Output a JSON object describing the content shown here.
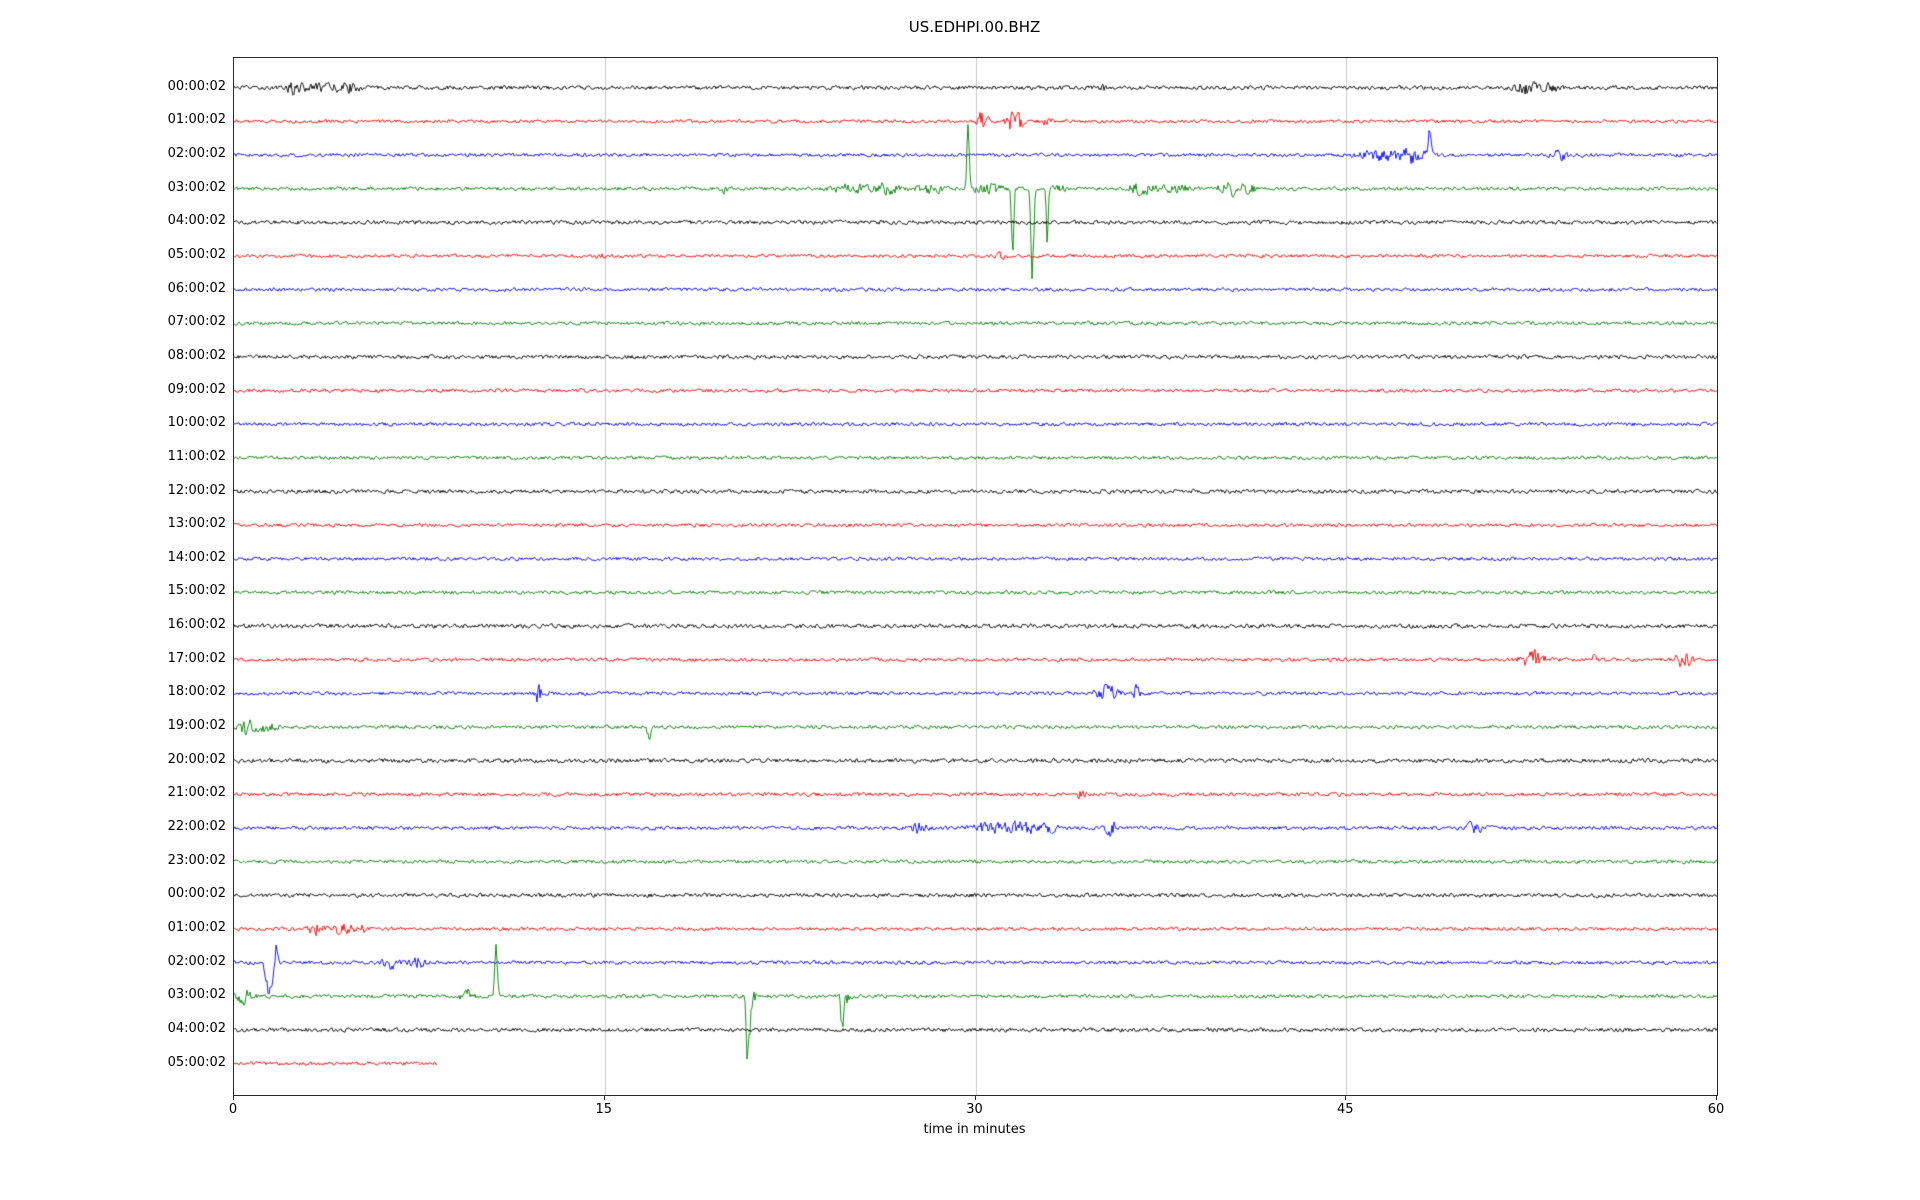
{
  "chart_data": {
    "type": "line",
    "title": "US.EDHPI.00.BHZ",
    "xlabel": "time in minutes",
    "x_range_minutes": [
      0,
      60
    ],
    "x_ticks": [
      "0",
      "15",
      "30",
      "45",
      "60"
    ],
    "grid_minutes": [
      15,
      30,
      45
    ],
    "grid_color": "#c8c8c8",
    "colors_cycle": [
      "#000000",
      "#ff0000",
      "#0000ff",
      "#008000"
    ],
    "rows": [
      {
        "label": "00:00:02",
        "color": "#000000",
        "base_amp": 2.6,
        "end_minute": 60,
        "events": [
          {
            "t": 2.4,
            "amp": 7,
            "dur": 0.6
          },
          {
            "t": 3.5,
            "amp": 4,
            "dur": 1.0
          },
          {
            "t": 4.6,
            "amp": 5,
            "dur": 0.8
          },
          {
            "t": 35.2,
            "amp": 4,
            "dur": 0.3
          },
          {
            "t": 52.3,
            "amp": 8,
            "dur": 0.7
          },
          {
            "t": 53.3,
            "amp": 5,
            "dur": 0.5
          }
        ]
      },
      {
        "label": "01:00:02",
        "color": "#ff0000",
        "base_amp": 2.2,
        "end_minute": 60,
        "events": [
          {
            "t": 30.3,
            "amp": 13,
            "dur": 0.35
          },
          {
            "t": 31.6,
            "amp": 15,
            "dur": 0.5
          },
          {
            "t": 32.9,
            "amp": 11,
            "dur": 0.25
          }
        ]
      },
      {
        "label": "02:00:02",
        "color": "#0000ff",
        "base_amp": 2.3,
        "end_minute": 60,
        "events": [
          {
            "t": 46.6,
            "amp": 7,
            "dur": 1.5
          },
          {
            "t": 47.7,
            "amp": 10,
            "dur": 0.8
          },
          {
            "t": 48.4,
            "amp": 28,
            "dur": 0.12,
            "sign": 1
          },
          {
            "t": 53.6,
            "amp": 7,
            "dur": 0.5
          }
        ]
      },
      {
        "label": "03:00:02",
        "color": "#008000",
        "base_amp": 2.3,
        "end_minute": 60,
        "events": [
          {
            "t": 19.8,
            "amp": 4,
            "dur": 0.3
          },
          {
            "t": 25.0,
            "amp": 6,
            "dur": 1.2
          },
          {
            "t": 26.4,
            "amp": 6,
            "dur": 0.8
          },
          {
            "t": 28.1,
            "amp": 5,
            "dur": 1.0
          },
          {
            "t": 29.7,
            "amp": 62,
            "dur": 0.1,
            "sign": 1
          },
          {
            "t": 30.5,
            "amp": 8,
            "dur": 0.8
          },
          {
            "t": 31.5,
            "amp": 75,
            "dur": 0.1,
            "sign": -1
          },
          {
            "t": 32.3,
            "amp": 88,
            "dur": 0.12,
            "sign": -1
          },
          {
            "t": 32.9,
            "amp": 58,
            "dur": 0.09,
            "sign": -1
          },
          {
            "t": 33.4,
            "amp": 12,
            "dur": 0.3
          },
          {
            "t": 36.7,
            "amp": 7,
            "dur": 0.8
          },
          {
            "t": 38.1,
            "amp": 5,
            "dur": 1.0
          },
          {
            "t": 40.3,
            "amp": 8,
            "dur": 0.8
          },
          {
            "t": 41.1,
            "amp": 5,
            "dur": 0.5
          }
        ]
      },
      {
        "label": "04:00:02",
        "color": "#000000",
        "base_amp": 2.6,
        "end_minute": 60,
        "events": []
      },
      {
        "label": "05:00:02",
        "color": "#ff0000",
        "base_amp": 2.2,
        "end_minute": 60,
        "events": [
          {
            "t": 14.8,
            "amp": 3,
            "dur": 0.3
          },
          {
            "t": 31.0,
            "amp": 4,
            "dur": 0.3
          }
        ]
      },
      {
        "label": "06:00:02",
        "color": "#0000ff",
        "base_amp": 2.3,
        "end_minute": 60,
        "events": []
      },
      {
        "label": "07:00:02",
        "color": "#008000",
        "base_amp": 2.3,
        "end_minute": 60,
        "events": []
      },
      {
        "label": "08:00:02",
        "color": "#000000",
        "base_amp": 2.6,
        "end_minute": 60,
        "events": []
      },
      {
        "label": "09:00:02",
        "color": "#ff0000",
        "base_amp": 2.3,
        "end_minute": 60,
        "events": []
      },
      {
        "label": "10:00:02",
        "color": "#0000ff",
        "base_amp": 2.3,
        "end_minute": 60,
        "events": []
      },
      {
        "label": "11:00:02",
        "color": "#008000",
        "base_amp": 2.3,
        "end_minute": 60,
        "events": []
      },
      {
        "label": "12:00:02",
        "color": "#000000",
        "base_amp": 2.6,
        "end_minute": 60,
        "events": []
      },
      {
        "label": "13:00:02",
        "color": "#ff0000",
        "base_amp": 2.2,
        "end_minute": 60,
        "events": []
      },
      {
        "label": "14:00:02",
        "color": "#0000ff",
        "base_amp": 2.3,
        "end_minute": 60,
        "events": []
      },
      {
        "label": "15:00:02",
        "color": "#008000",
        "base_amp": 2.3,
        "end_minute": 60,
        "events": []
      },
      {
        "label": "16:00:02",
        "color": "#000000",
        "base_amp": 2.8,
        "end_minute": 60,
        "events": []
      },
      {
        "label": "17:00:02",
        "color": "#ff0000",
        "base_amp": 2.3,
        "end_minute": 60,
        "events": [
          {
            "t": 52.6,
            "amp": 11,
            "dur": 0.8
          },
          {
            "t": 55.0,
            "amp": 4,
            "dur": 0.4
          },
          {
            "t": 58.7,
            "amp": 9,
            "dur": 0.6
          }
        ]
      },
      {
        "label": "18:00:02",
        "color": "#0000ff",
        "base_amp": 2.3,
        "end_minute": 60,
        "events": [
          {
            "t": 12.3,
            "amp": 13,
            "dur": 0.2
          },
          {
            "t": 35.3,
            "amp": 10,
            "dur": 0.7
          },
          {
            "t": 36.5,
            "amp": 9,
            "dur": 0.25
          }
        ]
      },
      {
        "label": "19:00:02",
        "color": "#008000",
        "base_amp": 2.3,
        "end_minute": 60,
        "events": [
          {
            "t": 0.5,
            "amp": 9,
            "dur": 0.5
          },
          {
            "t": 1.3,
            "amp": 6,
            "dur": 0.6
          },
          {
            "t": 16.8,
            "amp": 12,
            "dur": 0.15,
            "sign": -1
          }
        ]
      },
      {
        "label": "20:00:02",
        "color": "#000000",
        "base_amp": 2.8,
        "end_minute": 60,
        "events": []
      },
      {
        "label": "21:00:02",
        "color": "#ff0000",
        "base_amp": 2.4,
        "end_minute": 60,
        "events": [
          {
            "t": 34.3,
            "amp": 6,
            "dur": 0.3
          }
        ]
      },
      {
        "label": "22:00:02",
        "color": "#0000ff",
        "base_amp": 2.4,
        "end_minute": 60,
        "events": [
          {
            "t": 27.7,
            "amp": 7,
            "dur": 0.5
          },
          {
            "t": 30.6,
            "amp": 6,
            "dur": 1.2
          },
          {
            "t": 31.9,
            "amp": 7,
            "dur": 1.0
          },
          {
            "t": 33.0,
            "amp": 5,
            "dur": 0.6
          },
          {
            "t": 35.5,
            "amp": 10,
            "dur": 0.4
          },
          {
            "t": 50.2,
            "amp": 7,
            "dur": 0.6
          }
        ]
      },
      {
        "label": "23:00:02",
        "color": "#008000",
        "base_amp": 2.3,
        "end_minute": 60,
        "events": []
      },
      {
        "label": "00:00:02",
        "color": "#000000",
        "base_amp": 2.6,
        "end_minute": 60,
        "events": []
      },
      {
        "label": "01:00:02",
        "color": "#ff0000",
        "base_amp": 2.2,
        "end_minute": 60,
        "events": [
          {
            "t": 3.3,
            "amp": 7,
            "dur": 0.5
          },
          {
            "t": 4.4,
            "amp": 8,
            "dur": 0.6
          },
          {
            "t": 5.1,
            "amp": 5,
            "dur": 0.4
          }
        ]
      },
      {
        "label": "02:00:02",
        "color": "#0000ff",
        "base_amp": 2.3,
        "end_minute": 60,
        "events": [
          {
            "t": 1.45,
            "amp": 32,
            "dur": 0.3,
            "sign": -1
          },
          {
            "t": 1.7,
            "amp": 18,
            "dur": 0.12,
            "sign": 1
          },
          {
            "t": 6.3,
            "amp": 8,
            "dur": 0.5
          },
          {
            "t": 7.4,
            "amp": 7,
            "dur": 0.5
          }
        ]
      },
      {
        "label": "03:00:02",
        "color": "#008000",
        "base_amp": 2.3,
        "end_minute": 60,
        "events": [
          {
            "t": 0.4,
            "amp": 9,
            "dur": 0.5
          },
          {
            "t": 9.4,
            "amp": 11,
            "dur": 0.4
          },
          {
            "t": 10.6,
            "amp": 46,
            "dur": 0.12,
            "sign": 1
          },
          {
            "t": 20.8,
            "amp": 64,
            "dur": 0.15,
            "sign": -1
          },
          {
            "t": 20.9,
            "amp": 14,
            "dur": 0.3
          },
          {
            "t": 24.6,
            "amp": 36,
            "dur": 0.12,
            "sign": -1
          },
          {
            "t": 24.7,
            "amp": 12,
            "dur": 0.3
          }
        ]
      },
      {
        "label": "04:00:02",
        "color": "#000000",
        "base_amp": 2.6,
        "end_minute": 60,
        "events": []
      },
      {
        "label": "05:00:02",
        "color": "#ff0000",
        "base_amp": 2.3,
        "end_minute": 8.2,
        "events": []
      }
    ]
  }
}
